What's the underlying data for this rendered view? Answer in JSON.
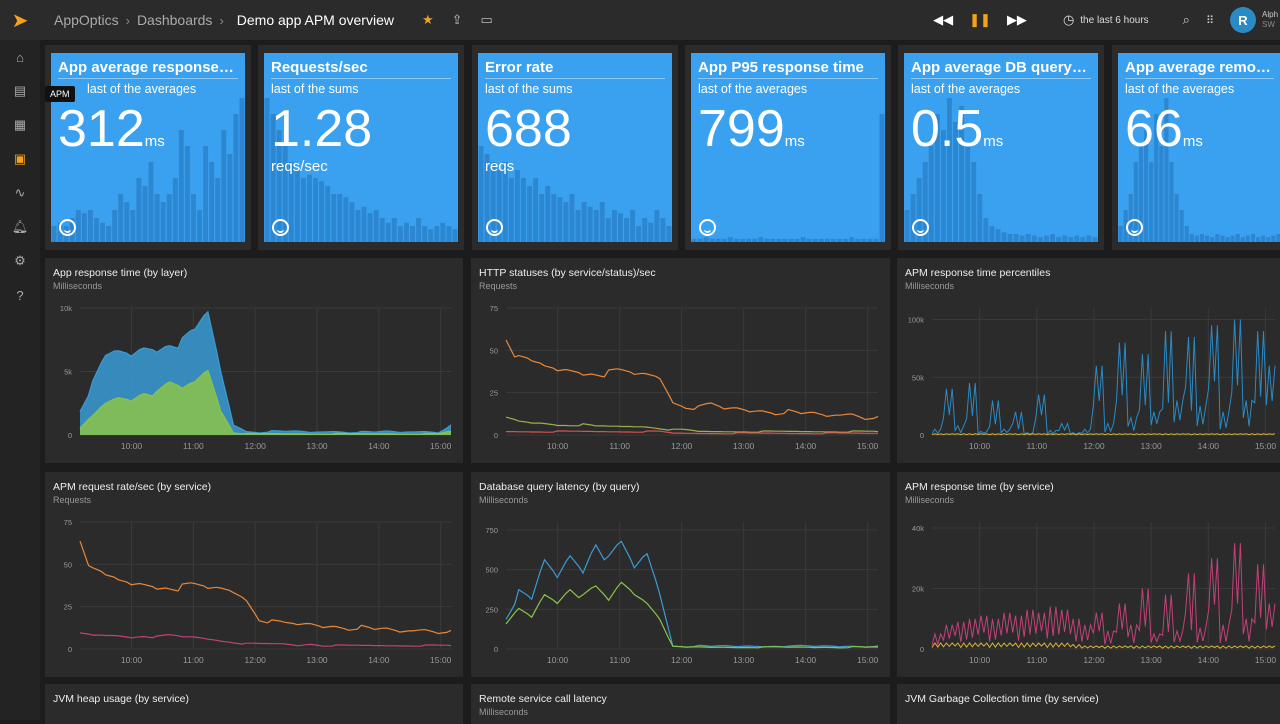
{
  "header": {
    "breadcrumbs": [
      "AppOptics",
      "Dashboards"
    ],
    "title": "Demo app APM overview",
    "time_range": "the last 6 hours",
    "user_initial": "R",
    "user_name": "Alph",
    "user_org": "SW"
  },
  "sidebar": {
    "tooltip": "APM",
    "active": "dashboards"
  },
  "colors": {
    "accent": "#f3a21c",
    "tile": "#3aa0f0",
    "tile_bar": "#2a7fc8",
    "blue": "#3a9bd6",
    "green": "#8bc34a",
    "orange": "#e8873a",
    "pink": "#c2417a",
    "yellow": "#d6b53a",
    "red": "#d9534f"
  },
  "tiles": [
    {
      "title": "App average response ti...",
      "subtitle": "last of the averages",
      "value": "312",
      "unit": "ms",
      "bars": [
        0.1,
        0.12,
        0.1,
        0.15,
        0.2,
        0.18,
        0.2,
        0.15,
        0.12,
        0.1,
        0.2,
        0.3,
        0.25,
        0.2,
        0.4,
        0.35,
        0.5,
        0.3,
        0.25,
        0.3,
        0.4,
        0.7,
        0.6,
        0.3,
        0.2,
        0.6,
        0.5,
        0.4,
        0.7,
        0.55,
        0.8,
        0.9
      ]
    },
    {
      "title": "Requests/sec",
      "subtitle": "last of the sums",
      "value": "1.28",
      "unit": "reqs/sec",
      "bars": [
        0.9,
        0.8,
        0.7,
        0.6,
        0.5,
        0.45,
        0.4,
        0.42,
        0.4,
        0.38,
        0.35,
        0.3,
        0.3,
        0.28,
        0.25,
        0.2,
        0.22,
        0.18,
        0.2,
        0.15,
        0.12,
        0.15,
        0.1,
        0.12,
        0.1,
        0.15,
        0.1,
        0.08,
        0.1,
        0.12,
        0.1,
        0.08
      ]
    },
    {
      "title": "Error rate",
      "subtitle": "last of the sums",
      "value": "688",
      "unit": "reqs",
      "bars": [
        0.6,
        0.55,
        0.5,
        0.45,
        0.5,
        0.4,
        0.45,
        0.4,
        0.35,
        0.4,
        0.3,
        0.35,
        0.3,
        0.28,
        0.25,
        0.3,
        0.2,
        0.25,
        0.22,
        0.2,
        0.25,
        0.15,
        0.2,
        0.18,
        0.15,
        0.2,
        0.1,
        0.15,
        0.12,
        0.2,
        0.15,
        0.1
      ]
    },
    {
      "title": "App P95 response time",
      "subtitle": "last of the averages",
      "value": "799",
      "unit": "ms",
      "bars": [
        0.02,
        0.02,
        0.03,
        0.02,
        0.02,
        0.02,
        0.03,
        0.02,
        0.02,
        0.02,
        0.02,
        0.03,
        0.02,
        0.02,
        0.02,
        0.02,
        0.02,
        0.02,
        0.03,
        0.02,
        0.02,
        0.02,
        0.02,
        0.02,
        0.02,
        0.02,
        0.03,
        0.02,
        0.02,
        0.02,
        0.02,
        0.8
      ]
    },
    {
      "title": "App average DB query ti...",
      "subtitle": "last of the averages",
      "value": "0.5",
      "unit": "ms",
      "bars": [
        0.2,
        0.3,
        0.4,
        0.5,
        0.6,
        0.8,
        0.7,
        0.9,
        0.75,
        0.85,
        0.6,
        0.5,
        0.3,
        0.15,
        0.1,
        0.08,
        0.06,
        0.05,
        0.05,
        0.04,
        0.05,
        0.04,
        0.03,
        0.04,
        0.05,
        0.03,
        0.04,
        0.03,
        0.04,
        0.03,
        0.04,
        0.03
      ]
    },
    {
      "title": "App average remote se",
      "subtitle": "last of the averages",
      "value": "66",
      "unit": "ms",
      "bars": [
        0.1,
        0.2,
        0.3,
        0.5,
        0.6,
        0.7,
        0.5,
        0.8,
        0.6,
        0.9,
        0.5,
        0.3,
        0.2,
        0.1,
        0.05,
        0.04,
        0.05,
        0.04,
        0.03,
        0.05,
        0.04,
        0.03,
        0.04,
        0.05,
        0.03,
        0.04,
        0.05,
        0.03,
        0.04,
        0.03,
        0.04,
        0.05
      ]
    }
  ],
  "chart_x": {
    "range": [
      "09:10",
      "15:10"
    ],
    "ticks": [
      "10:00",
      "11:00",
      "12:00",
      "13:00",
      "14:00",
      "15:00"
    ]
  },
  "panels": [
    {
      "title": "App response time (by layer)",
      "subtitle": "Milliseconds",
      "ymax": 10000,
      "yticks": [
        "0",
        "5k",
        "10k"
      ],
      "yvals": [
        0,
        5000,
        10000
      ],
      "style": "area",
      "series": [
        {
          "color": "#3a9bd6",
          "values": [
            2000,
            4000,
            6000,
            6500,
            6200,
            7000,
            6800,
            7500,
            7200,
            8000,
            9500,
            5000,
            800,
            300,
            200,
            300,
            250,
            300,
            200,
            250,
            300,
            200,
            250,
            200,
            300,
            200,
            250,
            300,
            200,
            800
          ]
        },
        {
          "color": "#8bc34a",
          "values": [
            500,
            1500,
            2500,
            3000,
            2800,
            3500,
            3200,
            4000,
            3600,
            4200,
            5200,
            2000,
            200,
            100,
            80,
            100,
            90,
            100,
            80,
            90,
            100,
            80,
            90,
            80,
            100,
            80,
            90,
            100,
            80,
            300
          ]
        }
      ]
    },
    {
      "title": "HTTP statuses (by service/status)/sec",
      "subtitle": "Requests",
      "ymax": 75,
      "yticks": [
        "0",
        "25",
        "50",
        "75"
      ],
      "yvals": [
        0,
        25,
        50,
        75
      ],
      "style": "line",
      "series": [
        {
          "color": "#e8873a",
          "values": [
            60,
            44,
            42,
            40,
            38,
            39,
            37,
            38,
            36,
            37,
            35,
            36,
            34,
            20,
            17,
            16,
            18,
            15,
            16,
            14,
            15,
            13,
            14,
            12,
            13,
            11,
            12,
            13,
            10,
            11
          ]
        },
        {
          "color": "#9bb04a",
          "values": [
            10,
            8,
            7,
            7,
            6,
            6,
            6,
            5,
            5,
            5,
            5,
            5,
            4,
            3,
            3,
            2,
            2,
            2,
            2,
            2,
            2,
            2,
            2,
            2,
            2,
            2,
            2,
            2,
            2,
            2
          ]
        },
        {
          "color": "#d9534f",
          "values": [
            2,
            2,
            2,
            2,
            2,
            2,
            2,
            2,
            2,
            2,
            2,
            2,
            2,
            1,
            1,
            1,
            1,
            1,
            1,
            1,
            1,
            1,
            1,
            1,
            1,
            1,
            1,
            1,
            1,
            1
          ]
        }
      ]
    },
    {
      "title": "APM response time percentiles",
      "subtitle": "Milliseconds",
      "ymax": 110000,
      "yticks": [
        "0",
        "50k",
        "100k"
      ],
      "yvals": [
        0,
        50000,
        100000
      ],
      "style": "spike",
      "series": [
        {
          "color": "#2a8ac4",
          "values": [
            5000,
            40000,
            8000,
            45000,
            3000,
            30000,
            5000,
            20000,
            2000,
            35000,
            4000,
            10000,
            2000,
            5000,
            60000,
            10000,
            80000,
            15000,
            70000,
            20000,
            90000,
            30000,
            85000,
            25000,
            95000,
            20000,
            100000,
            30000,
            90000,
            60000
          ]
        },
        {
          "color": "#d6b53a",
          "values": [
            1000,
            1000,
            1000,
            1000,
            1000,
            1000,
            1000,
            1000,
            1000,
            1000,
            1000,
            1000,
            1000,
            1000,
            1000,
            1000,
            1000,
            1000,
            1000,
            1000,
            1000,
            1000,
            1000,
            1000,
            1000,
            1000,
            1000,
            1000,
            1000,
            1000
          ]
        }
      ]
    },
    {
      "title": "APM request rate/sec (by service)",
      "subtitle": "Requests",
      "ymax": 75,
      "yticks": [
        "0",
        "25",
        "50",
        "75"
      ],
      "yvals": [
        0,
        25,
        50,
        75
      ],
      "style": "line",
      "series": [
        {
          "color": "#e8873a",
          "values": [
            68,
            45,
            42,
            40,
            38,
            39,
            37,
            38,
            36,
            37,
            35,
            36,
            34,
            30,
            18,
            16,
            15,
            14,
            15,
            13,
            14,
            12,
            13,
            11,
            12,
            10,
            11,
            12,
            10,
            11
          ]
        },
        {
          "color": "#c2417a",
          "values": [
            9,
            8,
            8,
            8,
            7,
            8,
            7,
            8,
            7,
            7,
            6,
            5,
            4,
            3,
            3,
            3,
            3,
            2,
            3,
            2,
            2,
            2,
            2,
            2,
            2,
            2,
            2,
            2,
            2,
            2
          ]
        }
      ]
    },
    {
      "title": "Database query latency (by query)",
      "subtitle": "Milliseconds",
      "ymax": 800,
      "yticks": [
        "0",
        "250",
        "500",
        "750"
      ],
      "yvals": [
        0,
        250,
        500,
        750
      ],
      "style": "line",
      "series": [
        {
          "color": "#3a9bd6",
          "values": [
            200,
            350,
            300,
            550,
            450,
            600,
            500,
            700,
            550,
            650,
            500,
            600,
            350,
            20,
            15,
            20,
            15,
            20,
            15,
            20,
            15,
            20,
            15,
            20,
            15,
            20,
            15,
            20,
            15,
            20
          ]
        },
        {
          "color": "#8bc34a",
          "values": [
            150,
            250,
            200,
            350,
            300,
            400,
            320,
            380,
            300,
            420,
            350,
            300,
            200,
            15,
            10,
            12,
            10,
            12,
            10,
            12,
            10,
            12,
            10,
            12,
            10,
            12,
            10,
            12,
            10,
            12
          ]
        }
      ]
    },
    {
      "title": "APM response time (by service)",
      "subtitle": "Milliseconds",
      "ymax": 42000,
      "yticks": [
        "0",
        "20k",
        "40k"
      ],
      "yvals": [
        0,
        20000,
        40000
      ],
      "style": "spike",
      "series": [
        {
          "color": "#c2417a",
          "values": [
            5000,
            8000,
            9000,
            10000,
            11000,
            10000,
            12000,
            11000,
            13000,
            12000,
            14000,
            13000,
            10000,
            8000,
            12000,
            6000,
            15000,
            8000,
            20000,
            5000,
            18000,
            6000,
            25000,
            7000,
            30000,
            8000,
            35000,
            10000,
            28000,
            15000
          ]
        },
        {
          "color": "#d6b53a",
          "values": [
            2000,
            2000,
            2000,
            2000,
            2000,
            2000,
            2000,
            2000,
            2000,
            2000,
            2000,
            2000,
            1500,
            1000,
            1000,
            1000,
            1000,
            1000,
            1000,
            1000,
            1000,
            1000,
            1000,
            1000,
            1000,
            1000,
            1000,
            1000,
            1000,
            1000
          ]
        }
      ]
    },
    {
      "title": "JVM heap usage (by service)",
      "subtitle": ""
    },
    {
      "title": "Remote service call latency",
      "subtitle": "Milliseconds"
    },
    {
      "title": "JVM Garbage Collection time (by service)",
      "subtitle": ""
    }
  ]
}
